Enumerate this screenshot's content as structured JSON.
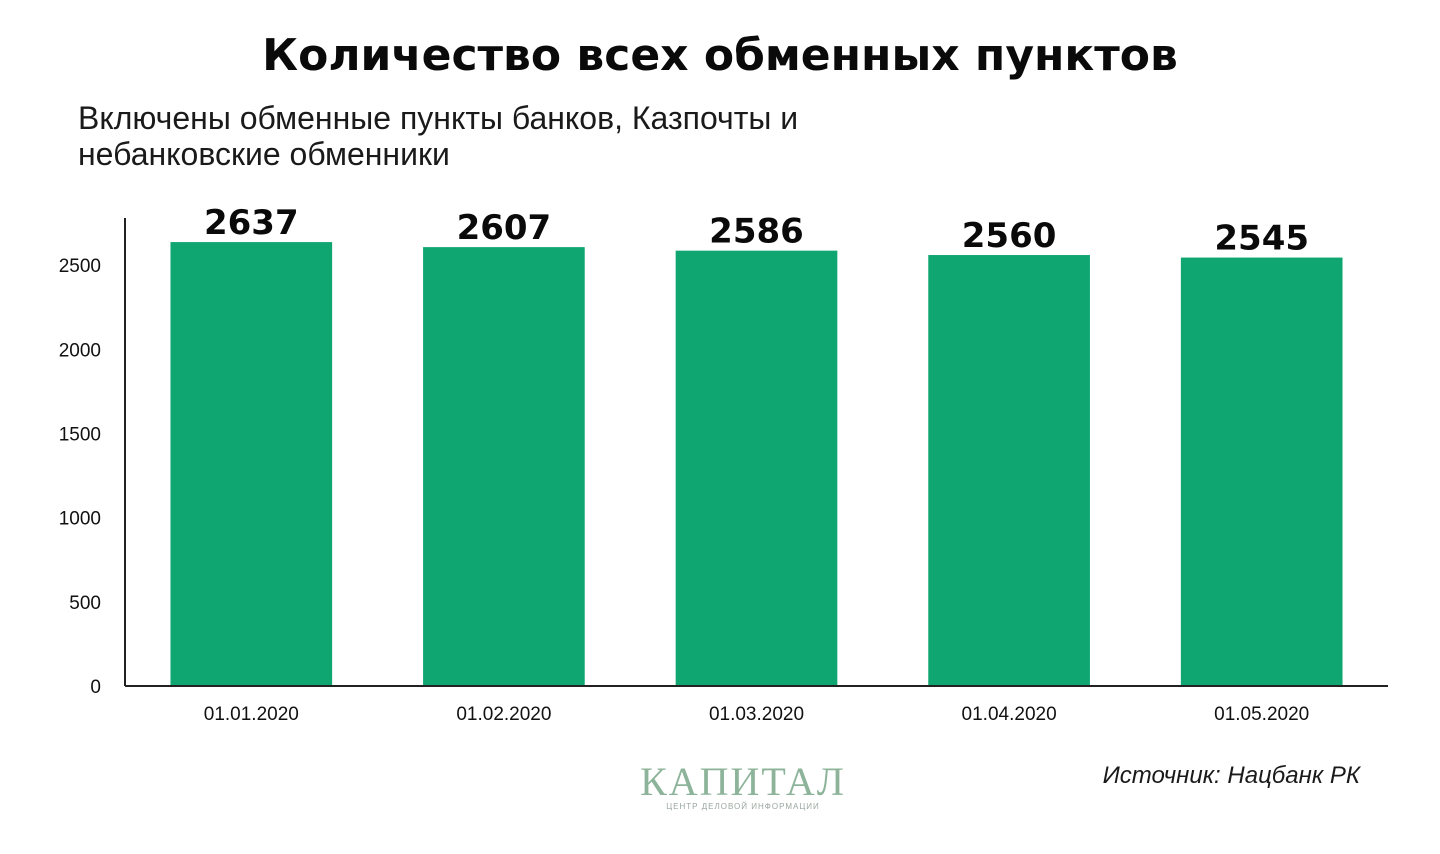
{
  "header": {
    "title": "Количество всех обменных пунктов",
    "subtitle": "Включены обменные пункты банков, Казпочты и небанковские обменники"
  },
  "footer": {
    "source": "Источник: Нацбанк РК",
    "logo_word": "КАПИТАЛ",
    "logo_tagline": "ЦЕНТР ДЕЛОВОЙ ИНФОРМАЦИИ"
  },
  "colors": {
    "bar": "#0fa672",
    "axis": "#222222",
    "logo": "#8db49a"
  },
  "chart_data": {
    "type": "bar",
    "title": "Количество всех обменных пунктов",
    "subtitle": "Включены обменные пункты банков, Казпочты и небанковские обменники",
    "categories": [
      "01.01.2020",
      "01.02.2020",
      "01.03.2020",
      "01.04.2020",
      "01.05.2020"
    ],
    "values": [
      2637,
      2607,
      2586,
      2560,
      2545
    ],
    "data_labels": [
      "2637",
      "2607",
      "2586",
      "2560",
      "2545"
    ],
    "yticks": [
      0,
      500,
      1000,
      1500,
      2000,
      2500
    ],
    "ylim": [
      0,
      2780
    ],
    "xlabel": "",
    "ylabel": "",
    "grid": false,
    "legend": "none"
  }
}
